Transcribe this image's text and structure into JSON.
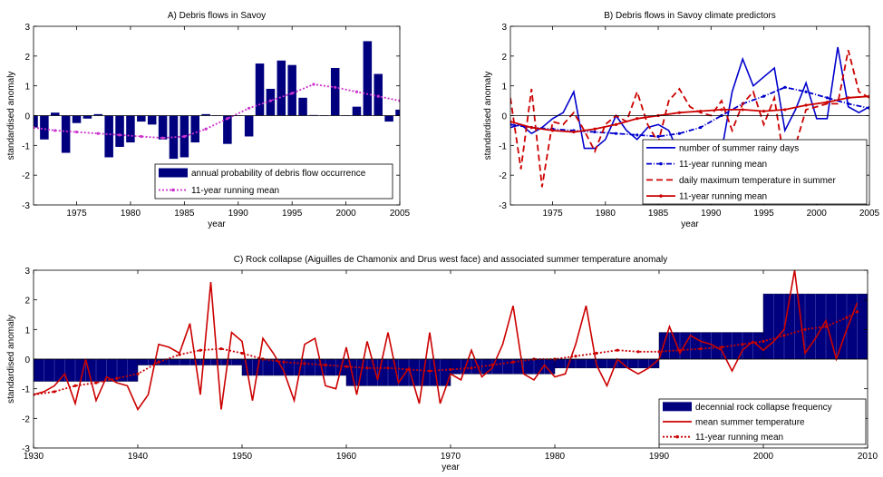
{
  "chart_data": [
    {
      "id": "A",
      "type": "bar",
      "title": "A) Debris flows in Savoy",
      "xlabel": "year",
      "ylabel": "standardised anomaly",
      "xlim": [
        1971,
        2005
      ],
      "ylim": [
        -3,
        3
      ],
      "xticks": [
        1975,
        1980,
        1985,
        1990,
        1995,
        2000,
        2005
      ],
      "yticks": [
        -3,
        -2,
        -1,
        0,
        1,
        2,
        3
      ],
      "legend_position": "bottom-right",
      "bar_width_years": 0.8,
      "series": [
        {
          "name": "annual probability of debris flow occurrence",
          "kind": "bar",
          "color": "#00007f",
          "x": [
            1971,
            1972,
            1973,
            1974,
            1975,
            1976,
            1977,
            1978,
            1979,
            1980,
            1981,
            1982,
            1983,
            1984,
            1985,
            1986,
            1987,
            1988,
            1989,
            1990,
            1991,
            1992,
            1993,
            1994,
            1995,
            1996,
            1997,
            1998,
            1999,
            2000,
            2001,
            2002,
            2003,
            2004,
            2005
          ],
          "values": [
            -0.4,
            -0.8,
            0.1,
            -1.25,
            -0.25,
            -0.1,
            0.05,
            -1.4,
            -1.05,
            -0.9,
            -0.2,
            -0.3,
            -0.8,
            -1.45,
            -1.4,
            -0.9,
            0.05,
            0.0,
            -0.95,
            0.0,
            -0.7,
            1.75,
            0.9,
            1.85,
            1.7,
            0.6,
            0.02,
            0.0,
            1.6,
            0.0,
            0.3,
            2.5,
            1.4,
            -0.2,
            0.2
          ]
        },
        {
          "name": "11-year running mean",
          "kind": "line",
          "color": "#cc33cc",
          "style": "dotted-plus",
          "x": [
            1971,
            1973,
            1975,
            1977,
            1979,
            1981,
            1983,
            1985,
            1987,
            1989,
            1991,
            1993,
            1995,
            1997,
            1999,
            2001,
            2003,
            2005
          ],
          "values": [
            -0.4,
            -0.5,
            -0.55,
            -0.6,
            -0.65,
            -0.7,
            -0.75,
            -0.7,
            -0.45,
            -0.1,
            0.25,
            0.5,
            0.75,
            1.05,
            0.95,
            0.8,
            0.65,
            0.5
          ]
        }
      ]
    },
    {
      "id": "B",
      "type": "line",
      "title": "B) Debris flows in Savoy climate predictors",
      "xlabel": "year",
      "ylabel": "standardised anomaly",
      "xlim": [
        1971,
        2005
      ],
      "ylim": [
        -3,
        3
      ],
      "xticks": [
        1975,
        1980,
        1985,
        1990,
        1995,
        2000,
        2005
      ],
      "yticks": [
        -3,
        -2,
        -1,
        0,
        1,
        2,
        3
      ],
      "legend_position": "bottom-right",
      "series": [
        {
          "name": "number of summer rainy days",
          "color": "#0000cc",
          "style": "solid",
          "x": [
            1971,
            1972,
            1973,
            1974,
            1975,
            1976,
            1977,
            1978,
            1979,
            1980,
            1981,
            1982,
            1983,
            1984,
            1985,
            1986,
            1987,
            1988,
            1989,
            1990,
            1991,
            1992,
            1993,
            1994,
            1995,
            1996,
            1997,
            1998,
            1999,
            2000,
            2001,
            2002,
            2003,
            2004,
            2005
          ],
          "values": [
            -0.4,
            -0.3,
            -0.6,
            -0.4,
            -0.1,
            0.1,
            0.8,
            -1.1,
            -1.1,
            -0.8,
            0.0,
            -0.5,
            -0.8,
            -0.4,
            -0.3,
            -0.5,
            -1.3,
            -1.9,
            -1.3,
            -0.9,
            -1.2,
            0.8,
            1.9,
            1.0,
            1.3,
            1.6,
            -0.5,
            0.2,
            1.1,
            -0.1,
            -0.1,
            2.3,
            0.3,
            0.1,
            0.3
          ]
        },
        {
          "name": "11-year running mean",
          "color": "#0000cc",
          "style": "dash-dot-marker",
          "x": [
            1971,
            1973,
            1975,
            1977,
            1979,
            1981,
            1983,
            1985,
            1987,
            1989,
            1991,
            1993,
            1995,
            1997,
            1999,
            2001,
            2003,
            2005
          ],
          "values": [
            -0.3,
            -0.4,
            -0.45,
            -0.5,
            -0.55,
            -0.6,
            -0.65,
            -0.7,
            -0.6,
            -0.4,
            0.0,
            0.4,
            0.65,
            0.95,
            0.8,
            0.6,
            0.4,
            0.25
          ]
        },
        {
          "name": "daily maximum temperature in summer",
          "color": "#cc0000",
          "style": "dashed",
          "x": [
            1971,
            1972,
            1973,
            1974,
            1975,
            1976,
            1977,
            1978,
            1979,
            1980,
            1981,
            1982,
            1983,
            1984,
            1985,
            1986,
            1987,
            1988,
            1989,
            1990,
            1991,
            1992,
            1993,
            1994,
            1995,
            1996,
            1997,
            1998,
            1999,
            2000,
            2001,
            2002,
            2003,
            2004,
            2005
          ],
          "values": [
            0.6,
            -1.8,
            0.9,
            -2.4,
            -0.2,
            -0.3,
            0.1,
            -0.5,
            -1.2,
            -0.3,
            0.0,
            -0.2,
            0.8,
            -0.3,
            -0.9,
            0.5,
            0.9,
            0.3,
            0.1,
            0.0,
            0.5,
            -0.5,
            0.4,
            0.8,
            -0.3,
            0.6,
            -1.7,
            -1.0,
            0.2,
            0.3,
            0.4,
            0.4,
            2.2,
            0.8,
            0.6
          ]
        },
        {
          "name": "11-year running mean",
          "color": "#cc0000",
          "style": "solid-marker",
          "x": [
            1971,
            1973,
            1975,
            1977,
            1979,
            1981,
            1983,
            1985,
            1987,
            1989,
            1991,
            1993,
            1995,
            1997,
            1999,
            2001,
            2003,
            2005
          ],
          "values": [
            -0.2,
            -0.4,
            -0.5,
            -0.55,
            -0.45,
            -0.3,
            -0.1,
            0.0,
            0.1,
            0.15,
            0.2,
            0.2,
            0.15,
            0.2,
            0.35,
            0.45,
            0.6,
            0.65
          ]
        }
      ]
    },
    {
      "id": "C",
      "type": "bar",
      "title": "C) Rock collapse (Aiguilles de Chamonix and Drus west face) and associated summer temperature anomaly",
      "xlabel": "year",
      "ylabel": "standardised anomaly",
      "xlim": [
        1930,
        2010
      ],
      "ylim": [
        -3,
        3
      ],
      "xticks": [
        1930,
        1940,
        1950,
        1960,
        1970,
        1980,
        1990,
        2000,
        2010
      ],
      "yticks": [
        -3,
        -2,
        -1,
        0,
        1,
        2,
        3
      ],
      "legend_position": "bottom-right",
      "bar_width_years": 0.9,
      "series": [
        {
          "name": "decennial rock collapse frequency",
          "kind": "bar",
          "color": "#00007f",
          "decades": [
            {
              "start": 1930,
              "end": 1940,
              "value": -0.75
            },
            {
              "start": 1940,
              "end": 1950,
              "value": -0.2
            },
            {
              "start": 1950,
              "end": 1960,
              "value": -0.55
            },
            {
              "start": 1960,
              "end": 1970,
              "value": -0.9
            },
            {
              "start": 1970,
              "end": 1980,
              "value": -0.5
            },
            {
              "start": 1980,
              "end": 1990,
              "value": -0.3
            },
            {
              "start": 1990,
              "end": 2000,
              "value": 0.9
            },
            {
              "start": 2000,
              "end": 2010,
              "value": 2.2
            }
          ]
        },
        {
          "name": "mean summer temperature",
          "color": "#cc0000",
          "style": "solid",
          "x": [
            1930,
            1931,
            1932,
            1933,
            1934,
            1935,
            1936,
            1937,
            1938,
            1939,
            1940,
            1941,
            1942,
            1943,
            1944,
            1945,
            1946,
            1947,
            1948,
            1949,
            1950,
            1951,
            1952,
            1953,
            1954,
            1955,
            1956,
            1957,
            1958,
            1959,
            1960,
            1961,
            1962,
            1963,
            1964,
            1965,
            1966,
            1967,
            1968,
            1969,
            1970,
            1971,
            1972,
            1973,
            1974,
            1975,
            1976,
            1977,
            1978,
            1979,
            1980,
            1981,
            1982,
            1983,
            1984,
            1985,
            1986,
            1987,
            1988,
            1989,
            1990,
            1991,
            1992,
            1993,
            1994,
            1995,
            1996,
            1997,
            1998,
            1999,
            2000,
            2001,
            2002,
            2003,
            2004,
            2005,
            2006,
            2007,
            2008,
            2009
          ],
          "values": [
            -1.2,
            -1.1,
            -0.9,
            -0.5,
            -1.5,
            0.0,
            -1.4,
            -0.6,
            -0.8,
            -0.9,
            -1.7,
            -1.2,
            0.5,
            0.4,
            0.2,
            1.2,
            -1.2,
            2.6,
            -1.7,
            0.9,
            0.6,
            -1.4,
            0.7,
            0.2,
            -0.4,
            -1.4,
            0.5,
            0.7,
            -0.9,
            -1.0,
            0.4,
            -1.2,
            0.6,
            -0.7,
            0.9,
            -0.8,
            -0.3,
            -1.5,
            0.9,
            -1.5,
            -0.5,
            -0.7,
            0.3,
            -0.6,
            -0.3,
            0.5,
            1.8,
            -0.5,
            -0.7,
            -0.2,
            -0.6,
            -0.5,
            0.5,
            1.8,
            -0.2,
            -0.9,
            0.0,
            -0.3,
            -0.5,
            -0.3,
            0.0,
            1.1,
            0.2,
            0.8,
            0.6,
            0.5,
            0.3,
            -0.4,
            0.3,
            0.6,
            0.3,
            0.6,
            1.0,
            3.0,
            0.2,
            0.7,
            1.3,
            0.0,
            1.0,
            1.9
          ]
        },
        {
          "name": "11-year running mean",
          "color": "#cc0000",
          "style": "dotted-plus",
          "x": [
            1930,
            1932,
            1934,
            1936,
            1938,
            1940,
            1942,
            1944,
            1946,
            1948,
            1950,
            1952,
            1954,
            1956,
            1958,
            1960,
            1962,
            1964,
            1966,
            1968,
            1970,
            1972,
            1974,
            1976,
            1978,
            1980,
            1982,
            1984,
            1986,
            1988,
            1990,
            1992,
            1994,
            1996,
            1998,
            2000,
            2002,
            2004,
            2006,
            2008,
            2009
          ],
          "values": [
            -1.2,
            -1.1,
            -0.9,
            -0.8,
            -0.65,
            -0.5,
            -0.1,
            0.15,
            0.3,
            0.35,
            0.2,
            0.0,
            -0.1,
            -0.15,
            -0.2,
            -0.25,
            -0.3,
            -0.3,
            -0.35,
            -0.4,
            -0.35,
            -0.3,
            -0.2,
            -0.1,
            0.0,
            0.0,
            0.1,
            0.2,
            0.3,
            0.25,
            0.25,
            0.3,
            0.35,
            0.4,
            0.5,
            0.6,
            0.8,
            1.0,
            1.1,
            1.4,
            1.6
          ]
        }
      ]
    }
  ]
}
